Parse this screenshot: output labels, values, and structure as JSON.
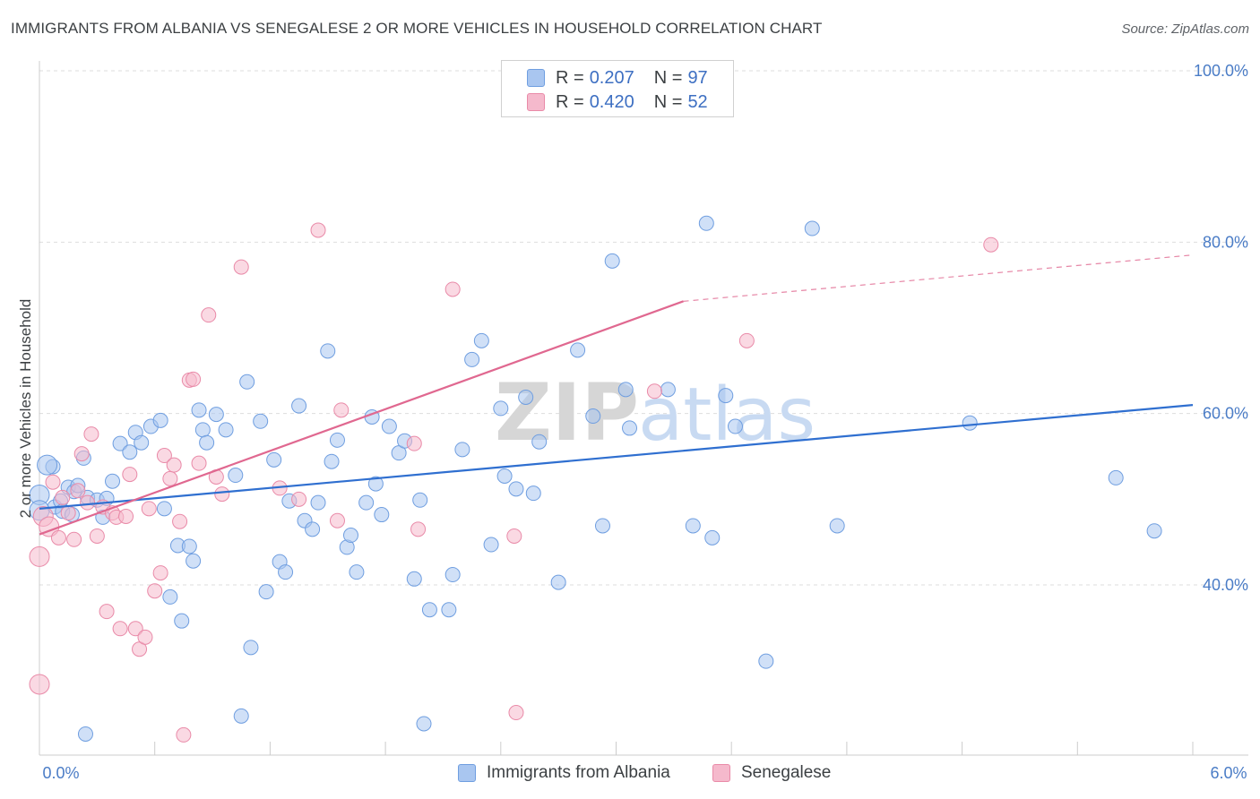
{
  "header": {
    "title": "IMMIGRANTS FROM ALBANIA VS SENEGALESE 2 OR MORE VEHICLES IN HOUSEHOLD CORRELATION CHART",
    "source": "Source: ZipAtlas.com"
  },
  "watermark": {
    "part1": "ZIP",
    "part2": "atlas"
  },
  "legend_top": {
    "rows": [
      {
        "r_label": "R =",
        "r_value": "0.207",
        "n_label": "N =",
        "n_value": "97"
      },
      {
        "r_label": "R =",
        "r_value": "0.420",
        "n_label": "N =",
        "n_value": "52"
      }
    ]
  },
  "legend_bottom": {
    "albania": "Immigrants from Albania",
    "senegalese": "Senegalese"
  },
  "colors": {
    "albania_fill": "#a9c6f0",
    "albania_stroke": "#6f9ee0",
    "albania_line": "#2f6fd0",
    "senegalese_fill": "#f5b9cc",
    "senegalese_stroke": "#e98aa8",
    "senegalese_line": "#e06890",
    "tick_text": "#4a7cc6",
    "grid": "#dddddd"
  },
  "chart_data": {
    "type": "scatter",
    "title": "IMMIGRANTS FROM ALBANIA VS SENEGALESE 2 OR MORE VEHICLES IN HOUSEHOLD CORRELATION CHART",
    "xlabel": "",
    "ylabel": "2 or more Vehicles in Household",
    "xlim": [
      0,
      6
    ],
    "ylim": [
      18,
      102
    ],
    "x_tick_labels": [
      "0.0%",
      "6.0%"
    ],
    "y_ticks": [
      40,
      60,
      80,
      100
    ],
    "y_tick_labels": [
      "40.0%",
      "60.0%",
      "80.0%",
      "100.0%"
    ],
    "grid": true,
    "legend_position": "top-center",
    "series": [
      {
        "name": "Immigrants from Albania",
        "R": 0.207,
        "N": 97,
        "trend": {
          "x0": 0.0,
          "y0": 48.9,
          "x1": 6.0,
          "y1": 61.0
        },
        "points": [
          [
            0.0,
            50.5
          ],
          [
            0.07,
            53.8
          ],
          [
            0.08,
            49.1
          ],
          [
            0.11,
            49.8
          ],
          [
            0.12,
            48.6
          ],
          [
            0.15,
            51.4
          ],
          [
            0.17,
            48.2
          ],
          [
            0.18,
            50.9
          ],
          [
            0.2,
            51.6
          ],
          [
            0.23,
            54.8
          ],
          [
            0.25,
            50.2
          ],
          [
            0.3,
            49.9
          ],
          [
            0.33,
            47.9
          ],
          [
            0.35,
            50.1
          ],
          [
            0.38,
            52.1
          ],
          [
            0.42,
            56.5
          ],
          [
            0.47,
            55.5
          ],
          [
            0.5,
            57.8
          ],
          [
            0.53,
            56.6
          ],
          [
            0.58,
            58.5
          ],
          [
            0.63,
            59.2
          ],
          [
            0.65,
            48.9
          ],
          [
            0.68,
            38.6
          ],
          [
            0.72,
            44.6
          ],
          [
            0.74,
            35.8
          ],
          [
            0.78,
            44.5
          ],
          [
            0.8,
            42.8
          ],
          [
            0.83,
            60.4
          ],
          [
            0.85,
            58.1
          ],
          [
            0.87,
            56.6
          ],
          [
            0.92,
            59.9
          ],
          [
            0.97,
            58.1
          ],
          [
            1.02,
            52.8
          ],
          [
            1.05,
            24.7
          ],
          [
            1.08,
            63.7
          ],
          [
            1.1,
            32.7
          ],
          [
            1.15,
            59.1
          ],
          [
            1.18,
            39.2
          ],
          [
            1.22,
            54.6
          ],
          [
            1.25,
            42.7
          ],
          [
            1.28,
            41.5
          ],
          [
            1.3,
            49.8
          ],
          [
            1.35,
            60.9
          ],
          [
            1.38,
            47.5
          ],
          [
            1.42,
            46.5
          ],
          [
            1.45,
            49.6
          ],
          [
            1.5,
            67.3
          ],
          [
            1.52,
            54.4
          ],
          [
            1.55,
            56.9
          ],
          [
            1.6,
            44.4
          ],
          [
            1.62,
            45.8
          ],
          [
            1.65,
            41.5
          ],
          [
            1.7,
            49.6
          ],
          [
            1.73,
            59.6
          ],
          [
            1.75,
            51.8
          ],
          [
            1.78,
            48.2
          ],
          [
            1.82,
            58.5
          ],
          [
            1.87,
            55.4
          ],
          [
            1.9,
            56.8
          ],
          [
            1.95,
            40.7
          ],
          [
            1.98,
            49.9
          ],
          [
            2.0,
            23.8
          ],
          [
            2.03,
            37.1
          ],
          [
            2.13,
            37.1
          ],
          [
            2.15,
            41.2
          ],
          [
            2.2,
            55.8
          ],
          [
            2.25,
            66.3
          ],
          [
            2.3,
            68.5
          ],
          [
            2.35,
            44.7
          ],
          [
            2.4,
            60.6
          ],
          [
            2.42,
            52.7
          ],
          [
            2.48,
            51.2
          ],
          [
            2.53,
            61.9
          ],
          [
            2.57,
            50.7
          ],
          [
            2.6,
            56.7
          ],
          [
            2.7,
            40.3
          ],
          [
            2.8,
            67.4
          ],
          [
            2.88,
            59.7
          ],
          [
            2.93,
            46.9
          ],
          [
            2.98,
            77.8
          ],
          [
            3.05,
            62.8
          ],
          [
            3.07,
            58.3
          ],
          [
            3.27,
            62.8
          ],
          [
            3.4,
            46.9
          ],
          [
            3.47,
            82.2
          ],
          [
            3.5,
            45.5
          ],
          [
            3.57,
            62.1
          ],
          [
            3.62,
            58.5
          ],
          [
            3.78,
            31.1
          ],
          [
            4.02,
            81.6
          ],
          [
            4.15,
            46.9
          ],
          [
            4.84,
            58.9
          ],
          [
            5.6,
            52.5
          ],
          [
            5.8,
            46.3
          ],
          [
            0.04,
            54.0
          ],
          [
            0.0,
            48.7
          ],
          [
            0.24,
            22.6
          ]
        ]
      },
      {
        "name": "Senegalese",
        "R": 0.42,
        "N": 52,
        "trend": {
          "x0": 0.0,
          "y0": 45.9,
          "x1": 3.35,
          "y1": 73.1
        },
        "trend_dashed": {
          "x0": 3.35,
          "y0": 73.1,
          "x1": 6.0,
          "y1": 78.5
        },
        "points": [
          [
            0.0,
            43.3
          ],
          [
            0.02,
            48.0
          ],
          [
            0.05,
            46.8
          ],
          [
            0.07,
            52.0
          ],
          [
            0.1,
            45.5
          ],
          [
            0.12,
            50.2
          ],
          [
            0.15,
            48.4
          ],
          [
            0.18,
            45.3
          ],
          [
            0.2,
            51.0
          ],
          [
            0.22,
            55.3
          ],
          [
            0.25,
            49.6
          ],
          [
            0.27,
            57.6
          ],
          [
            0.3,
            45.7
          ],
          [
            0.33,
            49.1
          ],
          [
            0.35,
            36.9
          ],
          [
            0.38,
            48.4
          ],
          [
            0.4,
            47.9
          ],
          [
            0.42,
            34.9
          ],
          [
            0.45,
            48.0
          ],
          [
            0.47,
            52.9
          ],
          [
            0.5,
            34.9
          ],
          [
            0.52,
            32.5
          ],
          [
            0.55,
            33.9
          ],
          [
            0.57,
            48.9
          ],
          [
            0.6,
            39.3
          ],
          [
            0.63,
            41.4
          ],
          [
            0.65,
            55.1
          ],
          [
            0.68,
            52.4
          ],
          [
            0.7,
            54.0
          ],
          [
            0.73,
            47.4
          ],
          [
            0.75,
            22.5
          ],
          [
            0.78,
            63.9
          ],
          [
            0.8,
            64.0
          ],
          [
            0.83,
            54.2
          ],
          [
            0.88,
            71.5
          ],
          [
            0.92,
            52.6
          ],
          [
            0.95,
            50.6
          ],
          [
            1.05,
            77.1
          ],
          [
            1.25,
            51.3
          ],
          [
            1.35,
            50.0
          ],
          [
            1.45,
            81.4
          ],
          [
            1.55,
            47.5
          ],
          [
            1.57,
            60.4
          ],
          [
            1.95,
            56.5
          ],
          [
            1.97,
            46.5
          ],
          [
            2.15,
            74.5
          ],
          [
            2.47,
            45.7
          ],
          [
            2.48,
            25.1
          ],
          [
            3.2,
            62.6
          ],
          [
            3.68,
            68.5
          ],
          [
            4.95,
            79.7
          ],
          [
            0.0,
            28.4
          ]
        ]
      }
    ]
  }
}
